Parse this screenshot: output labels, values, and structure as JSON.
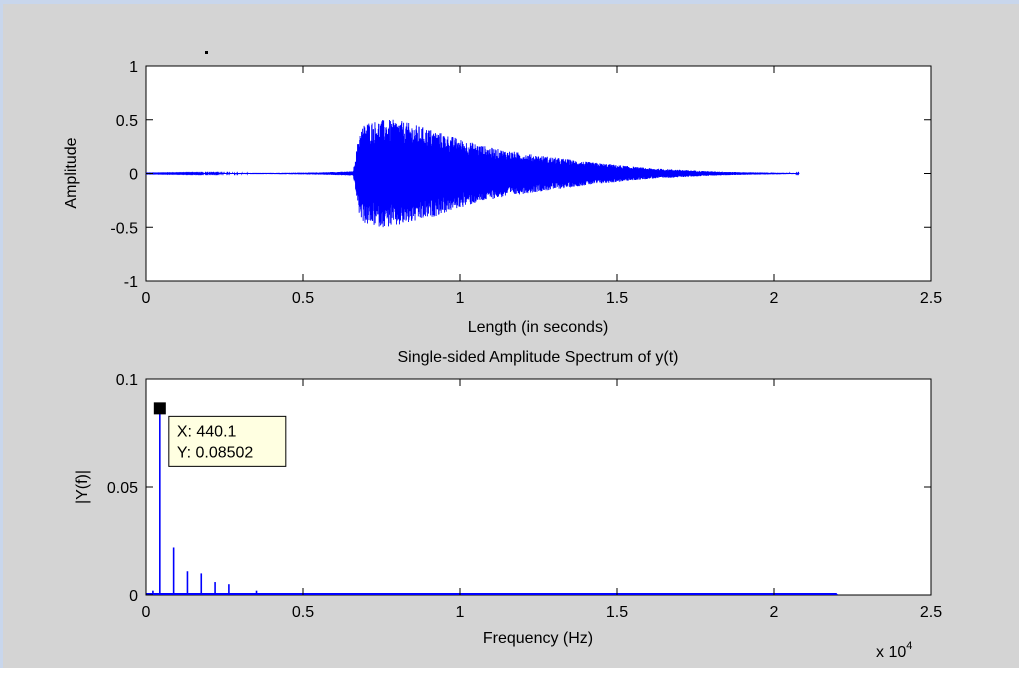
{
  "colors": {
    "figure_bg": "#d4d4d4",
    "axes_bg": "#ffffff",
    "line": "#0000ff",
    "datatip_bg": "#ffffe1",
    "window_edge": "#c8d6ec"
  },
  "chart_data": [
    {
      "type": "line",
      "title": "",
      "xlabel": "Length (in seconds)",
      "ylabel": "Amplitude",
      "xlim": [
        0,
        2.5
      ],
      "ylim": [
        -1,
        1
      ],
      "xticks": [
        0,
        0.5,
        1,
        1.5,
        2,
        2.5
      ],
      "xtick_labels": [
        "0",
        "0.5",
        "1",
        "1.5",
        "2",
        "2.5"
      ],
      "yticks": [
        -1,
        -0.5,
        0,
        0.5,
        1
      ],
      "ytick_labels": [
        "-1",
        "-0.5",
        "0",
        "0.5",
        "1"
      ],
      "grid": false,
      "legend": "none",
      "series": [
        {
          "envelope_time": [
            0,
            0.42,
            0.55,
            0.66,
            0.68,
            0.7,
            0.75,
            0.8,
            0.85,
            0.9,
            1.0,
            1.1,
            1.2,
            1.3,
            1.4,
            1.5,
            1.6,
            1.7,
            1.8,
            1.9,
            2.0,
            2.08
          ],
          "envelope_amplitude": [
            0.002,
            0.006,
            0.01,
            0.02,
            0.4,
            0.48,
            0.5,
            0.5,
            0.46,
            0.42,
            0.32,
            0.24,
            0.19,
            0.15,
            0.11,
            0.08,
            0.05,
            0.035,
            0.02,
            0.012,
            0.008,
            0.004
          ]
        }
      ]
    },
    {
      "type": "line",
      "title": "Single-sided Amplitude Spectrum of y(t)",
      "xlabel": "Frequency (Hz)",
      "ylabel": "|Y(f)|",
      "x_exponent_label": "x 10",
      "x_exponent": "4",
      "xlim": [
        0,
        25000
      ],
      "ylim": [
        0,
        0.1
      ],
      "xticks": [
        0,
        5000,
        10000,
        15000,
        20000,
        25000
      ],
      "xtick_labels": [
        "0",
        "0.5",
        "1",
        "1.5",
        "2",
        "2.5"
      ],
      "yticks": [
        0,
        0.05,
        0.1
      ],
      "ytick_labels": [
        "0",
        "0.05",
        "0.1"
      ],
      "grid": false,
      "legend": "none",
      "series": [
        {
          "x": [
            220,
            440.1,
            880,
            1320,
            1760,
            2200,
            2640,
            3520,
            22000
          ],
          "y": [
            0.002,
            0.08502,
            0.022,
            0.011,
            0.01,
            0.006,
            0.005,
            0.002,
            0.0005
          ],
          "spectrum_end": 22000
        }
      ],
      "datatip": {
        "x_label": "X: 440.1",
        "y_label": "Y: 0.08502",
        "x": 440.1,
        "y": 0.08502
      }
    }
  ]
}
